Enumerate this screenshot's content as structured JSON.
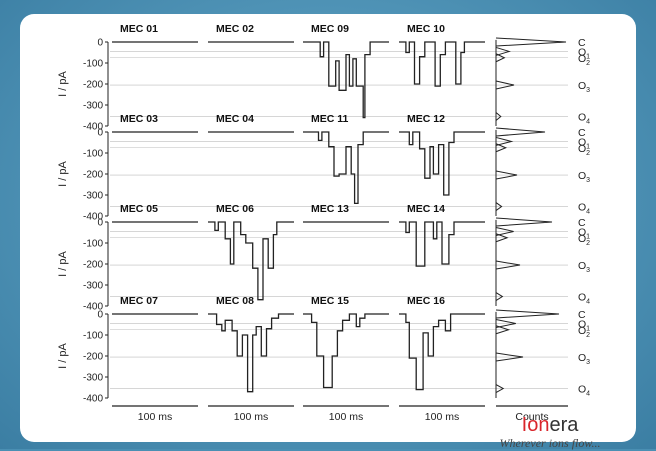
{
  "brand": {
    "name_prefix": "Ion",
    "name_suffix": "era",
    "tagline": "Wherever ions flow..."
  },
  "colors": {
    "background": "#4a8fb3",
    "card": "#ffffff",
    "trace": "#222222",
    "brand_red": "#d9252b",
    "gridline": "#bdbdbd"
  },
  "chart_data": {
    "type": "line",
    "ylabel": "I / pA",
    "ylim": [
      -400,
      0
    ],
    "yticks": [
      "0",
      "-100",
      "-200",
      "-300",
      "-400"
    ],
    "time_scale_label": "100 ms",
    "histogram_xlabel": "Counts",
    "state_levels": [
      {
        "label": "C",
        "current": 0
      },
      {
        "label": "O1",
        "current": -45
      },
      {
        "label": "O2",
        "current": -75
      },
      {
        "label": "O3",
        "current": -205
      },
      {
        "label": "O4",
        "current": -355
      }
    ],
    "rows": [
      {
        "traces": [
          {
            "name": "MEC 01",
            "segments": [
              [
                0,
                1,
                0
              ]
            ]
          },
          {
            "name": "MEC 02",
            "segments": [
              [
                0,
                1,
                0
              ]
            ]
          },
          {
            "name": "MEC 09",
            "segments": [
              [
                0,
                0.2,
                0
              ],
              [
                0.2,
                0.24,
                -70
              ],
              [
                0.24,
                0.3,
                0
              ],
              [
                0.3,
                0.38,
                -210
              ],
              [
                0.38,
                0.42,
                -90
              ],
              [
                0.42,
                0.5,
                -230
              ],
              [
                0.5,
                0.54,
                -60
              ],
              [
                0.54,
                0.58,
                -210
              ],
              [
                0.58,
                0.62,
                -80
              ],
              [
                0.62,
                0.7,
                -210
              ],
              [
                0.7,
                0.72,
                -360
              ],
              [
                0.72,
                0.78,
                -60
              ],
              [
                0.78,
                1,
                0
              ]
            ]
          },
          {
            "name": "MEC 10",
            "segments": [
              [
                0,
                0.08,
                0
              ],
              [
                0.08,
                0.12,
                -50
              ],
              [
                0.12,
                0.18,
                0
              ],
              [
                0.18,
                0.24,
                -200
              ],
              [
                0.24,
                0.3,
                -70
              ],
              [
                0.3,
                0.42,
                0
              ],
              [
                0.42,
                0.48,
                -210
              ],
              [
                0.48,
                0.54,
                -60
              ],
              [
                0.54,
                0.66,
                0
              ],
              [
                0.66,
                0.72,
                -200
              ],
              [
                0.72,
                0.76,
                -50
              ],
              [
                0.76,
                1,
                0
              ]
            ]
          }
        ]
      },
      {
        "traces": [
          {
            "name": "MEC 03",
            "segments": [
              [
                0,
                1,
                0
              ]
            ]
          },
          {
            "name": "MEC 04",
            "segments": [
              [
                0,
                1,
                0
              ]
            ]
          },
          {
            "name": "MEC 11",
            "segments": [
              [
                0,
                0.18,
                0
              ],
              [
                0.18,
                0.22,
                -40
              ],
              [
                0.22,
                0.3,
                0
              ],
              [
                0.3,
                0.36,
                -70
              ],
              [
                0.36,
                0.42,
                -210
              ],
              [
                0.42,
                0.5,
                -200
              ],
              [
                0.5,
                0.56,
                -70
              ],
              [
                0.56,
                0.6,
                -200
              ],
              [
                0.6,
                0.64,
                -340
              ],
              [
                0.64,
                0.7,
                -60
              ],
              [
                0.7,
                1,
                0
              ]
            ]
          },
          {
            "name": "MEC 12",
            "segments": [
              [
                0,
                0.12,
                0
              ],
              [
                0.12,
                0.16,
                -60
              ],
              [
                0.16,
                0.24,
                0
              ],
              [
                0.24,
                0.3,
                -80
              ],
              [
                0.3,
                0.36,
                -220
              ],
              [
                0.36,
                0.4,
                -70
              ],
              [
                0.4,
                0.46,
                -200
              ],
              [
                0.46,
                0.52,
                -60
              ],
              [
                0.52,
                0.58,
                -300
              ],
              [
                0.58,
                0.64,
                -50
              ],
              [
                0.64,
                1,
                0
              ]
            ]
          }
        ]
      },
      {
        "traces": [
          {
            "name": "MEC 05",
            "segments": [
              [
                0,
                1,
                0
              ]
            ]
          },
          {
            "name": "MEC 06",
            "segments": [
              [
                0,
                0.08,
                0
              ],
              [
                0.08,
                0.12,
                -40
              ],
              [
                0.12,
                0.2,
                0
              ],
              [
                0.2,
                0.26,
                -80
              ],
              [
                0.26,
                0.3,
                -200
              ],
              [
                0.3,
                0.38,
                0
              ],
              [
                0.38,
                0.44,
                -60
              ],
              [
                0.44,
                0.52,
                -100
              ],
              [
                0.52,
                0.58,
                -220
              ],
              [
                0.58,
                0.64,
                -370
              ],
              [
                0.64,
                0.7,
                -80
              ],
              [
                0.7,
                0.76,
                -220
              ],
              [
                0.76,
                0.8,
                -60
              ],
              [
                0.8,
                1,
                0
              ]
            ]
          },
          {
            "name": "MEC 13",
            "segments": [
              [
                0,
                1,
                0
              ]
            ]
          },
          {
            "name": "MEC 14",
            "segments": [
              [
                0,
                0.08,
                0
              ],
              [
                0.08,
                0.12,
                -50
              ],
              [
                0.12,
                0.2,
                0
              ],
              [
                0.2,
                0.3,
                -210
              ],
              [
                0.3,
                0.4,
                0
              ],
              [
                0.4,
                0.44,
                -80
              ],
              [
                0.44,
                0.5,
                0
              ],
              [
                0.5,
                0.58,
                -200
              ],
              [
                0.58,
                0.64,
                -60
              ],
              [
                0.64,
                1,
                0
              ]
            ]
          }
        ]
      },
      {
        "traces": [
          {
            "name": "MEC 07",
            "segments": [
              [
                0,
                1,
                0
              ]
            ]
          },
          {
            "name": "MEC 08",
            "segments": [
              [
                0,
                0.1,
                0
              ],
              [
                0.1,
                0.16,
                -50
              ],
              [
                0.16,
                0.2,
                -80
              ],
              [
                0.2,
                0.28,
                -30
              ],
              [
                0.28,
                0.34,
                -80
              ],
              [
                0.34,
                0.4,
                -200
              ],
              [
                0.4,
                0.46,
                -100
              ],
              [
                0.46,
                0.52,
                -370
              ],
              [
                0.52,
                0.56,
                -100
              ],
              [
                0.56,
                0.62,
                -60
              ],
              [
                0.62,
                0.68,
                -200
              ],
              [
                0.68,
                0.74,
                -70
              ],
              [
                0.74,
                0.82,
                -20
              ],
              [
                0.82,
                1,
                0
              ]
            ]
          },
          {
            "name": "MEC 15",
            "segments": [
              [
                0,
                0.1,
                0
              ],
              [
                0.1,
                0.16,
                -40
              ],
              [
                0.16,
                0.24,
                -200
              ],
              [
                0.24,
                0.34,
                -350
              ],
              [
                0.34,
                0.4,
                -200
              ],
              [
                0.4,
                0.46,
                -80
              ],
              [
                0.46,
                0.54,
                -30
              ],
              [
                0.54,
                0.62,
                0
              ],
              [
                0.62,
                0.66,
                -60
              ],
              [
                0.66,
                0.72,
                -20
              ],
              [
                0.72,
                1,
                0
              ]
            ]
          },
          {
            "name": "MEC 16",
            "segments": [
              [
                0,
                0.08,
                0
              ],
              [
                0.08,
                0.12,
                -40
              ],
              [
                0.12,
                0.2,
                -210
              ],
              [
                0.2,
                0.28,
                -360
              ],
              [
                0.28,
                0.34,
                -90
              ],
              [
                0.34,
                0.4,
                -200
              ],
              [
                0.4,
                0.46,
                -60
              ],
              [
                0.46,
                0.54,
                -30
              ],
              [
                0.54,
                0.6,
                -80
              ],
              [
                0.6,
                1,
                0
              ]
            ]
          }
        ]
      }
    ]
  }
}
